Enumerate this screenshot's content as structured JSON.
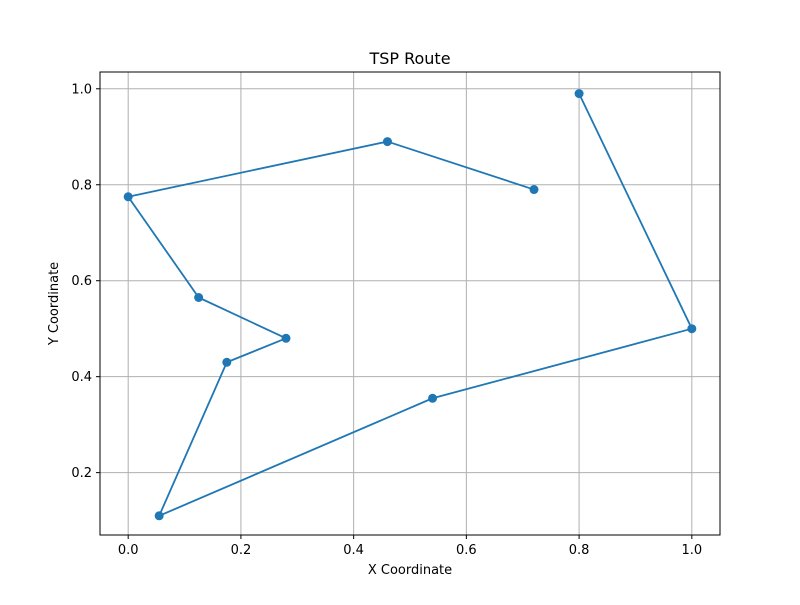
{
  "chart_data": {
    "type": "line",
    "title": "TSP Route",
    "xlabel": "X Coordinate",
    "ylabel": "Y Coordinate",
    "xlim": [
      -0.05,
      1.05
    ],
    "ylim": [
      0.07,
      1.035
    ],
    "xticks": [
      0.0,
      0.2,
      0.4,
      0.6,
      0.8,
      1.0
    ],
    "xtick_labels": [
      "0.0",
      "0.2",
      "0.4",
      "0.6",
      "0.8",
      "1.0"
    ],
    "yticks": [
      0.2,
      0.4,
      0.6,
      0.8,
      1.0
    ],
    "ytick_labels": [
      "0.2",
      "0.4",
      "0.6",
      "0.8",
      "1.0"
    ],
    "grid": true,
    "series": [
      {
        "color": "#1f77b4",
        "marker": "circle",
        "x": [
          0.72,
          0.46,
          0.0,
          0.125,
          0.28,
          0.175,
          0.055,
          0.54,
          1.0,
          0.8
        ],
        "y": [
          0.79,
          0.89,
          0.775,
          0.565,
          0.48,
          0.43,
          0.11,
          0.355,
          0.5,
          0.99
        ]
      }
    ]
  }
}
